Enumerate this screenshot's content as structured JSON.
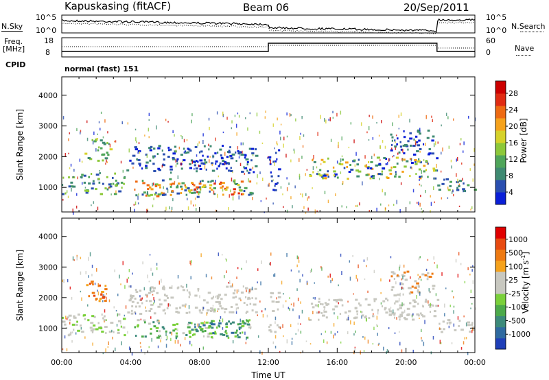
{
  "header": {
    "station": "Kapuskasing (fitACF)",
    "beam": "Beam 06",
    "date": "20/Sep/2011"
  },
  "noise_panel": {
    "left_label": "N.Sky",
    "right_label": "N.Search",
    "left_ticks": [
      "10^5",
      "10^0"
    ],
    "right_ticks": [
      "10^5",
      "10^0"
    ]
  },
  "freq_panel": {
    "left_label_1": "Freq.",
    "left_label_2": "[MHz]",
    "right_label": "Nave",
    "left_ticks": [
      "18",
      "8"
    ],
    "right_ticks": [
      "60",
      "0"
    ]
  },
  "cpid": {
    "label": "CPID",
    "value": "normal (fast) 151"
  },
  "chart_data": [
    {
      "type": "heatmap",
      "name": "power",
      "ylabel": "Slant Range [km]",
      "xlabel": "",
      "yticks": [
        "4000",
        "3000",
        "2000",
        "1000"
      ],
      "ylim": [
        200,
        4600
      ],
      "xlim": [
        0,
        24
      ],
      "colorbar": {
        "label": "Power [dB]",
        "ticks": [
          "28",
          "24",
          "20",
          "16",
          "12",
          "8",
          "4"
        ],
        "colors": [
          "#0a1fd8",
          "#2a4fb0",
          "#3f8a72",
          "#4fa55a",
          "#8dc83a",
          "#d6d22a",
          "#f5a21c",
          "#ee6a12",
          "#e02b12",
          "#cc0000"
        ]
      }
    },
    {
      "type": "heatmap",
      "name": "velocity",
      "ylabel": "Slant Range [km]",
      "xlabel": "Time UT",
      "yticks": [
        "4000",
        "3000",
        "2000",
        "1000"
      ],
      "xticks": [
        "00:00",
        "04:00",
        "08:00",
        "12:00",
        "16:00",
        "20:00",
        "00:00"
      ],
      "ylim": [
        200,
        4600
      ],
      "xlim": [
        0,
        24
      ],
      "colorbar": {
        "label": "Velocity [m s",
        "label_sup": "-1",
        "label_end": "]",
        "ticks": [
          "1000",
          "500",
          "100",
          "25",
          "-25",
          "-100",
          "-500",
          "-1000"
        ],
        "colors": [
          "#1f3fb8",
          "#2f6aa0",
          "#3c8a7a",
          "#4caa4a",
          "#7ad03a",
          "#c8c8c0",
          "#c8c8c0",
          "#f5a21c",
          "#ee7a12",
          "#e84a10",
          "#e00000"
        ]
      }
    }
  ]
}
